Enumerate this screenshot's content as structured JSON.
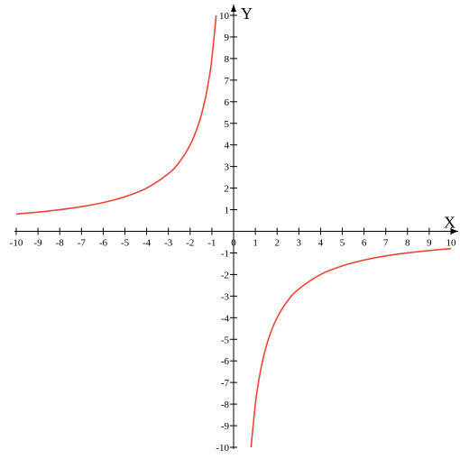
{
  "chart_data": {
    "type": "line",
    "title": "",
    "xlabel": "X",
    "ylabel": "Y",
    "xlim": [
      -10,
      10
    ],
    "ylim": [
      -10,
      10
    ],
    "x_ticks": [
      -10,
      -9,
      -8,
      -7,
      -6,
      -5,
      -4,
      -3,
      -2,
      -1,
      0,
      1,
      2,
      3,
      4,
      5,
      6,
      7,
      8,
      9,
      10
    ],
    "y_ticks": [
      -10,
      -9,
      -8,
      -7,
      -6,
      -5,
      -4,
      -3,
      -2,
      -1,
      1,
      2,
      3,
      4,
      5,
      6,
      7,
      8,
      9,
      10
    ],
    "grid": false,
    "series": [
      {
        "color": "#e8463c",
        "x": [
          -10,
          -9,
          -8,
          -7,
          -6,
          -5,
          -4,
          -3,
          -2.5,
          -2,
          -1.6,
          -1.3,
          -1.1,
          -1.0,
          -0.8
        ],
        "y": [
          0.8,
          0.89,
          1.0,
          1.14,
          1.33,
          1.6,
          2.0,
          2.67,
          3.2,
          4.0,
          5.0,
          6.15,
          7.27,
          8.0,
          10.0
        ]
      },
      {
        "color": "#e8463c",
        "x": [
          0.8,
          1.0,
          1.1,
          1.3,
          1.6,
          2.0,
          2.5,
          3,
          4,
          5,
          6,
          7,
          8,
          9,
          10
        ],
        "y": [
          -10.0,
          -8.0,
          -7.27,
          -6.15,
          -5.0,
          -4.0,
          -3.2,
          -2.67,
          -2.0,
          -1.6,
          -1.33,
          -1.14,
          -1.0,
          -0.89,
          -0.8
        ]
      }
    ]
  }
}
